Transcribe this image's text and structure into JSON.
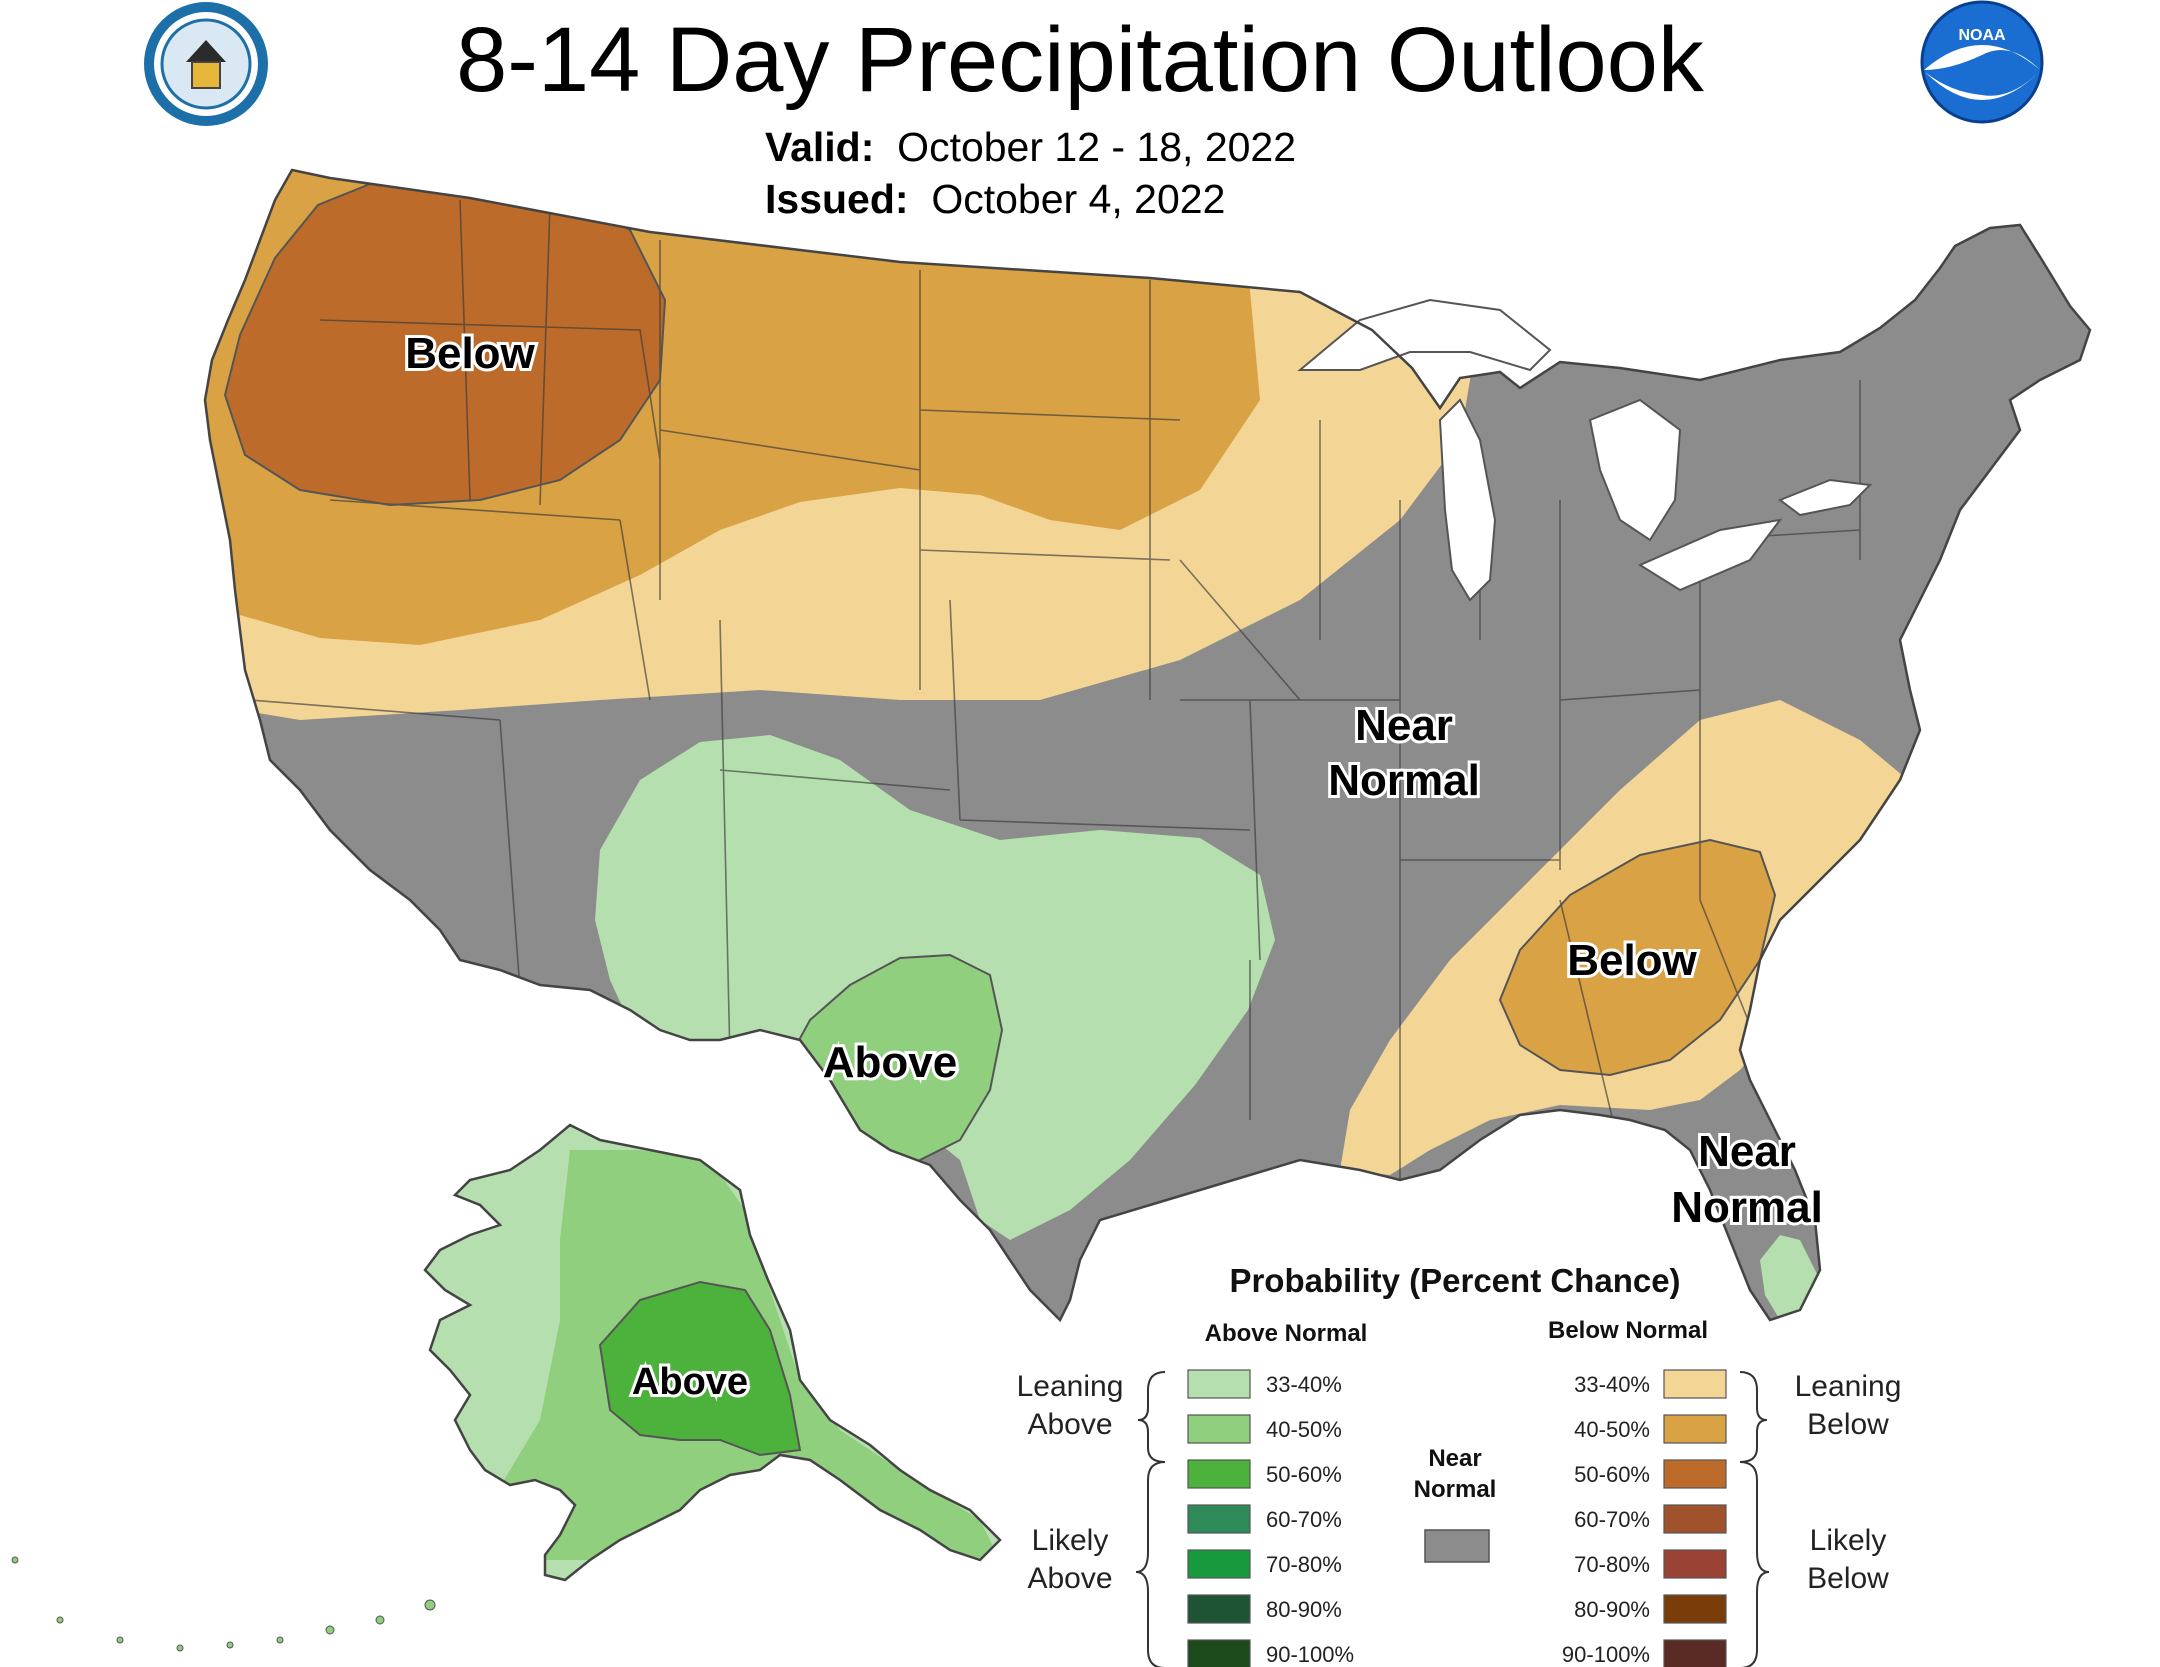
{
  "header": {
    "title": "8-14 Day Precipitation Outlook",
    "valid_label": "Valid:",
    "valid_value": "October 12 - 18, 2022",
    "issued_label": "Issued:",
    "issued_value": "October 4, 2022"
  },
  "logos": {
    "left": "doc-seal",
    "right": "noaa-logo",
    "right_text": "NOAA"
  },
  "map_labels": {
    "below_northwest": "Below",
    "near_normal_central": [
      "Near",
      "Normal"
    ],
    "below_southeast": "Below",
    "above_texas": "Above",
    "near_normal_florida": [
      "Near",
      "Normal"
    ],
    "above_alaska": "Above"
  },
  "legend": {
    "title": "Probability (Percent Chance)",
    "above_header": "Above Normal",
    "below_header": "Below Normal",
    "near_header": [
      "Near",
      "Normal"
    ],
    "above_bins": [
      {
        "label": "33-40%",
        "color": "#b5dfae"
      },
      {
        "label": "40-50%",
        "color": "#8fcf7e"
      },
      {
        "label": "50-60%",
        "color": "#4cb23c"
      },
      {
        "label": "60-70%",
        "color": "#2f8a5a"
      },
      {
        "label": "70-80%",
        "color": "#179a3d"
      },
      {
        "label": "80-90%",
        "color": "#1e5434"
      },
      {
        "label": "90-100%",
        "color": "#1d4a1a"
      }
    ],
    "below_bins": [
      {
        "label": "33-40%",
        "color": "#f3d595"
      },
      {
        "label": "40-50%",
        "color": "#d9a244"
      },
      {
        "label": "50-60%",
        "color": "#bd6b2a"
      },
      {
        "label": "60-70%",
        "color": "#a0522d"
      },
      {
        "label": "70-80%",
        "color": "#9a4233"
      },
      {
        "label": "80-90%",
        "color": "#7a3c08"
      },
      {
        "label": "90-100%",
        "color": "#5a2a24"
      }
    ],
    "near_color": "#8c8c8c",
    "leaning_above": [
      "Leaning",
      "Above"
    ],
    "likely_above": [
      "Likely",
      "Above"
    ],
    "leaning_below": [
      "Leaning",
      "Below"
    ],
    "likely_below": [
      "Likely",
      "Below"
    ]
  },
  "colors": {
    "near_normal": "#8c8c8c",
    "leaning_below": "#f3d595",
    "below_40_50": "#d9a244",
    "below_50_60": "#bd6b2a",
    "leaning_above": "#b5dfae",
    "above_40_50": "#8fcf7e",
    "above_50_60": "#4cb23c",
    "water": "#ffffff"
  }
}
